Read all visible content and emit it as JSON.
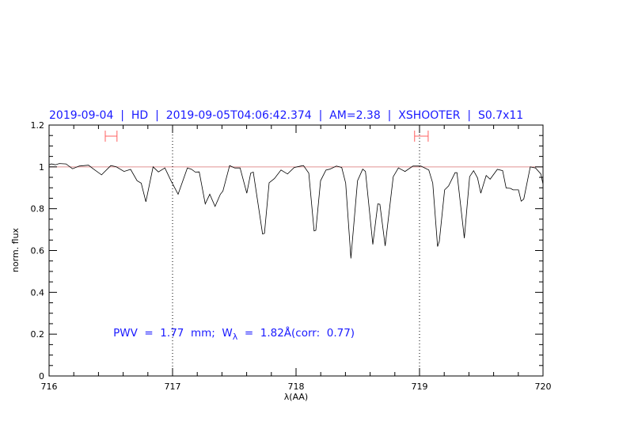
{
  "chart_data": {
    "type": "line",
    "title": "2019-09-04  |  HD  |  2019-09-05T04:06:42.374  |  AM=2.38  |  XSHOOTER  |  S0.7x11",
    "xlabel": "λ(AA)",
    "ylabel": "norm. flux",
    "xlim": [
      716,
      720
    ],
    "ylim": [
      0,
      1.2
    ],
    "x_ticks": [
      716,
      717,
      718,
      719,
      720
    ],
    "x_tick_labels": [
      "716",
      "717",
      "718",
      "719",
      "720"
    ],
    "y_ticks": [
      0,
      0.2,
      0.4,
      0.6,
      0.8,
      1,
      1.2
    ],
    "y_tick_labels": [
      "0",
      "0.2",
      "0.4",
      "0.6",
      "0.8",
      "1",
      "1.2"
    ],
    "x_minor_step": 0.2,
    "y_minor_step": 0.05,
    "grid": false,
    "reference_line": {
      "y": 1.0,
      "color": "#e09090"
    },
    "vertical_lines": [
      717,
      719
    ],
    "error_bars": [
      {
        "x": [
          716.455,
          716.55
        ],
        "y": 1.147
      },
      {
        "x": [
          718.96,
          719.07
        ],
        "y": 1.147
      }
    ],
    "error_bar_color": "#ff6060",
    "line_color": "#000000",
    "text_color": "#1a1aff",
    "annotation": {
      "prefix": "PWV  =  1.77  mm;  W",
      "subscript": "λ",
      "suffix": "  =  1.82Å(corr:  0.77)",
      "x": 716.52,
      "y": 0.19
    },
    "series": [
      {
        "x": [
          716.0,
          716.019,
          716.051,
          716.083,
          716.137,
          716.19,
          716.244,
          716.319,
          716.361,
          716.425,
          716.5,
          716.543,
          716.607,
          716.66,
          716.713,
          716.746,
          716.784,
          716.842,
          716.885,
          716.938,
          716.987,
          717.045,
          717.12,
          717.152,
          717.184,
          717.216,
          717.265,
          717.301,
          717.344,
          717.387,
          717.408,
          717.462,
          717.504,
          717.547,
          717.601,
          717.633,
          717.654,
          717.729,
          717.744,
          717.782,
          717.825,
          717.878,
          717.931,
          717.985,
          718.038,
          718.06,
          718.103,
          718.146,
          718.16,
          718.199,
          718.242,
          718.274,
          718.327,
          718.37,
          718.402,
          718.444,
          718.498,
          718.54,
          718.562,
          718.622,
          718.662,
          718.679,
          718.722,
          718.787,
          718.829,
          718.883,
          718.947,
          719.011,
          719.075,
          719.107,
          719.146,
          719.16,
          719.203,
          719.235,
          719.288,
          719.303,
          719.363,
          719.406,
          719.438,
          719.47,
          719.496,
          719.54,
          719.572,
          719.63,
          719.673,
          719.701,
          719.737,
          719.758,
          719.801,
          719.823,
          719.844,
          719.897,
          719.94,
          719.983,
          720.0
        ],
        "y": [
          1.01,
          1.014,
          1.01,
          1.016,
          1.014,
          0.991,
          1.004,
          1.008,
          0.989,
          0.962,
          1.006,
          1.001,
          0.978,
          0.988,
          0.934,
          0.922,
          0.833,
          1.0,
          0.976,
          0.995,
          0.934,
          0.869,
          0.995,
          0.989,
          0.975,
          0.976,
          0.823,
          0.869,
          0.811,
          0.869,
          0.884,
          1.006,
          0.995,
          0.995,
          0.874,
          0.97,
          0.975,
          0.679,
          0.682,
          0.924,
          0.944,
          0.985,
          0.966,
          0.997,
          1.004,
          1.006,
          0.97,
          0.694,
          0.697,
          0.934,
          0.985,
          0.989,
          1.004,
          0.997,
          0.922,
          0.562,
          0.934,
          0.989,
          0.978,
          0.629,
          0.823,
          0.821,
          0.622,
          0.953,
          0.995,
          0.978,
          1.004,
          1.004,
          0.985,
          0.922,
          0.619,
          0.644,
          0.89,
          0.909,
          0.972,
          0.972,
          0.659,
          0.953,
          0.982,
          0.947,
          0.874,
          0.959,
          0.941,
          0.988,
          0.982,
          0.899,
          0.897,
          0.89,
          0.89,
          0.836,
          0.846,
          1.0,
          0.995,
          0.966,
          0.917
        ]
      }
    ]
  }
}
